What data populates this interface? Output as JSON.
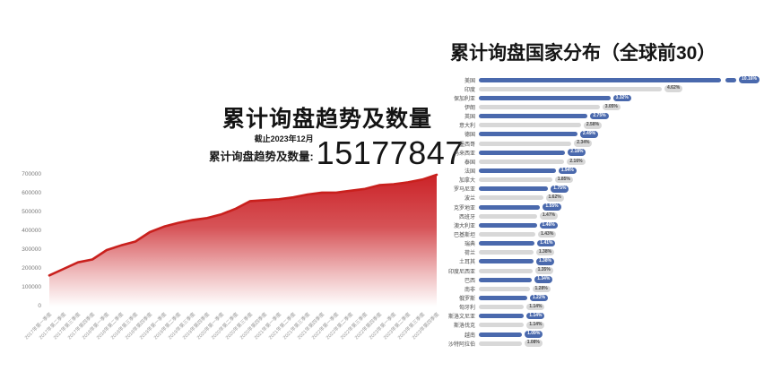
{
  "chart_data": [
    {
      "type": "area",
      "title": "累计询盘趋势及数量",
      "note_date": "截止2023年12月",
      "stat_label": "累计询盘趋势及数量:",
      "stat_value": "15177847",
      "categories": [
        "2017年第一季度",
        "2017年第二季度",
        "2017年第三季度",
        "2017年第四季度",
        "2018年第一季度",
        "2018年第二季度",
        "2018年第三季度",
        "2018年第四季度",
        "2019年第一季度",
        "2019年第二季度",
        "2019年第三季度",
        "2019年第四季度",
        "2020年第一季度",
        "2020年第二季度",
        "2020年第三季度",
        "2020年第四季度",
        "2021年第一季度",
        "2021年第二季度",
        "2021年第三季度",
        "2021年第四季度",
        "2022年第一季度",
        "2022年第二季度",
        "2022年第三季度",
        "2022年第四季度",
        "2023年第一季度",
        "2023年第二季度",
        "2023年第三季度",
        "2023年第四季度"
      ],
      "values": [
        165000,
        200000,
        235000,
        250000,
        300000,
        325000,
        345000,
        395000,
        425000,
        445000,
        460000,
        470000,
        490000,
        520000,
        560000,
        565000,
        570000,
        580000,
        595000,
        605000,
        605000,
        615000,
        625000,
        645000,
        650000,
        660000,
        675000,
        700000
      ],
      "ylim": [
        0,
        700000
      ],
      "ytick_step": 100000,
      "grid": false,
      "legend": "none",
      "line_color": "#c9201d",
      "fill_color": "#cb2328",
      "axis_text_color": "#7a7a7a"
    },
    {
      "type": "bar",
      "orientation": "horizontal",
      "title": "累计询盘国家分布（全球前30）",
      "categories": [
        "美国",
        "印度",
        "保加利亚",
        "伊朗",
        "英国",
        "意大利",
        "德国",
        "墨西哥",
        "马来西亚",
        "泰国",
        "法国",
        "加拿大",
        "罗马尼亚",
        "波兰",
        "克罗地亚",
        "西班牙",
        "澳大利亚",
        "巴基斯坦",
        "瑞典",
        "荷兰",
        "土耳其",
        "印度尼西亚",
        "巴西",
        "南非",
        "俄罗斯",
        "匈牙利",
        "斯洛文尼亚",
        "斯洛伐克",
        "越南",
        "沙特阿拉伯"
      ],
      "values": [
        10.16,
        4.62,
        3.32,
        3.05,
        2.75,
        2.58,
        2.49,
        2.34,
        2.18,
        2.16,
        1.94,
        1.85,
        1.75,
        1.62,
        1.55,
        1.47,
        1.46,
        1.43,
        1.41,
        1.38,
        1.38,
        1.35,
        1.34,
        1.28,
        1.22,
        1.14,
        1.14,
        1.14,
        1.09,
        1.08
      ],
      "value_suffix": "%",
      "xmax_regular": 4.62,
      "first_bar_broken": true,
      "bar_color_odd": "#4a69ad",
      "bar_color_even": "#d8d8d8",
      "pill_text_on_blue": "#ffffff",
      "pill_text_on_gray": "#4a4a4a",
      "legend": "none",
      "grid": false
    }
  ]
}
